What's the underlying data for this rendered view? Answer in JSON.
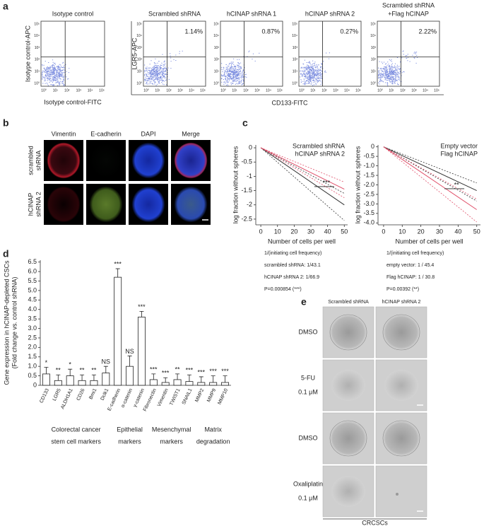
{
  "figure": {
    "a": {
      "label": "a",
      "isotype": {
        "title": "Isotype control",
        "ylabel": "Isotype control-APC",
        "xlabel": "Isotype control-FITC"
      },
      "plots": [
        {
          "title": [
            "Scrambled shRNA"
          ],
          "percent": "1.14%"
        },
        {
          "title": [
            "hCINAP shRNA 1"
          ],
          "percent": "0.87%"
        },
        {
          "title": [
            "hCINAP shRNA 2"
          ],
          "percent": "0.27%"
        },
        {
          "title": [
            "Scrambled shRNA",
            "+Flag hCINAP"
          ],
          "percent": "2.22%"
        }
      ],
      "ylabel": "LGR5-APC",
      "xlabel": "CD133-FITC",
      "tick_labels": [
        "10⁰",
        "10¹",
        "10²",
        "10³",
        "10⁴",
        "10⁵"
      ]
    },
    "b": {
      "label": "b",
      "columns": [
        {
          "name": "Vimentin",
          "color": "#b0205a"
        },
        {
          "name": "E-cadherin",
          "color": "#3a7a2a"
        },
        {
          "name": "DAPI",
          "color": "#2a2ab0"
        },
        {
          "name": "Merge",
          "color": "#222222"
        }
      ],
      "rows": [
        [
          "scrambled",
          "shRNA"
        ],
        [
          "hCINAP",
          "shRNA 2"
        ]
      ]
    },
    "c": {
      "label": "c"
    },
    "d": {
      "label": "d"
    },
    "e": {
      "label": "e",
      "columns": [
        "Scrambled shRNA",
        "hCINAP shRNA 2"
      ],
      "rows": [
        [
          "DMSO"
        ],
        [
          "5-FU",
          "0.1 μM"
        ],
        [
          "DMSO"
        ],
        [
          "Oxaliplatin",
          "0.1 μM"
        ]
      ],
      "footer": "CRCSCs"
    }
  },
  "chart_data": [
    {
      "type": "line",
      "xlabel": "Number of cells per well",
      "ylabel": "log fraction without spheres",
      "x": [
        0,
        50
      ],
      "xlim": [
        -3,
        52
      ],
      "xticks": [
        0,
        10,
        20,
        30,
        40,
        50
      ],
      "ylim": [
        -2.7,
        0.1
      ],
      "yticks": [
        0,
        -0.5,
        -1,
        -1.5,
        -2,
        -2.5
      ],
      "series": [
        {
          "name": "Scrambled shRNA",
          "color": "#333333",
          "values": [
            0,
            -2.0
          ],
          "ci_lower": [
            0,
            -2.55
          ],
          "ci_upper": [
            0,
            -1.6
          ]
        },
        {
          "name": "hCINAP shRNA 2",
          "color": "#e0506a",
          "legend_color": "#d6336c",
          "values": [
            0,
            -1.45
          ],
          "ci_lower": [
            0,
            -1.75
          ],
          "ci_upper": [
            0,
            -1.2
          ]
        }
      ],
      "annotation": "***",
      "notes": [
        "1/(initiating cell frequency)",
        "scrambled shRNA: 1/43.1",
        "hCINAP shRNA 2: 1/66.9",
        "P=0.000854 (***)"
      ]
    },
    {
      "type": "line",
      "xlabel": "Number of cells per well",
      "ylabel": "log fraction without spheres",
      "x": [
        0,
        50
      ],
      "xlim": [
        -3,
        52
      ],
      "xticks": [
        0,
        10,
        20,
        30,
        40,
        50
      ],
      "ylim": [
        -4.1,
        0.1
      ],
      "yticks": [
        0,
        -0.5,
        {
          "value": -1,
          "label": "-1.0"
        },
        -1.5,
        {
          "value": -2,
          "label": "-2.0"
        },
        -2.5,
        {
          "value": -3,
          "label": "-3.0"
        },
        -3.5,
        {
          "value": -4,
          "label": "-4.0"
        }
      ],
      "series": [
        {
          "name": "Empty vector",
          "color": "#333333",
          "values": [
            0,
            -2.3
          ],
          "ci_lower": [
            0,
            -2.85
          ],
          "ci_upper": [
            0,
            -1.9
          ]
        },
        {
          "name": "Flag hCINAP",
          "color": "#e0506a",
          "legend_color": "#d6336c",
          "values": [
            0,
            -3.3
          ],
          "ci_lower": [
            0,
            -3.95
          ],
          "ci_upper": [
            0,
            -2.75
          ]
        }
      ],
      "annotation": "**",
      "notes": [
        "1/(initiating cell frequency)",
        "empty vector: 1 / 45.4",
        "Flag hCINAP: 1 / 30.8",
        "P=0.00392 (**)"
      ]
    },
    {
      "type": "bar",
      "ylabel": [
        "Gene expression in hCINAP-depleted CSCs",
        "(Fold change vs. control shRNA)"
      ],
      "categories": [
        "CD133",
        "LGR5",
        "ALDH1A1",
        "CD26",
        "Bmi1",
        "Dclk1",
        "E-cadherin",
        "α-catenin",
        "γ-catenin",
        "Fibronectin",
        "Vimentin",
        "TWIST1",
        "SNAIL1",
        "MMP2",
        "MMP9",
        "MMP10"
      ],
      "values": [
        0.6,
        0.25,
        0.5,
        0.25,
        0.25,
        0.65,
        5.7,
        1.0,
        3.6,
        0.3,
        0.15,
        0.3,
        0.2,
        0.15,
        0.15,
        0.15
      ],
      "errors": [
        0.35,
        0.3,
        0.35,
        0.3,
        0.3,
        0.35,
        0.45,
        0.55,
        0.3,
        0.3,
        0.25,
        0.3,
        0.35,
        0.3,
        0.35,
        0.35
      ],
      "significance": [
        "*",
        "**",
        "*",
        "**",
        "**",
        "NS",
        "***",
        "NS",
        "***",
        "***",
        "***",
        "**",
        "***",
        "***",
        "***",
        "***"
      ],
      "ylim": [
        0,
        6.6
      ],
      "yticks": [
        0,
        0.5,
        {
          "value": 1,
          "label": "1.0"
        },
        1.5,
        {
          "value": 2,
          "label": "2.0"
        },
        2.5,
        {
          "value": 3,
          "label": "3.0"
        },
        3.5,
        {
          "value": 4,
          "label": "4.0"
        },
        4.5,
        {
          "value": 5,
          "label": "5.0"
        },
        5.5,
        {
          "value": 6,
          "label": "6.0"
        },
        6.5
      ],
      "groups": [
        [
          "Colorectal cancer",
          "stem cell markers"
        ],
        [
          "Epithelial",
          "markers"
        ],
        [
          "Mesenchymal",
          "markers"
        ],
        [
          "Matrix",
          "degradation"
        ]
      ],
      "color": "#ffffff"
    }
  ]
}
